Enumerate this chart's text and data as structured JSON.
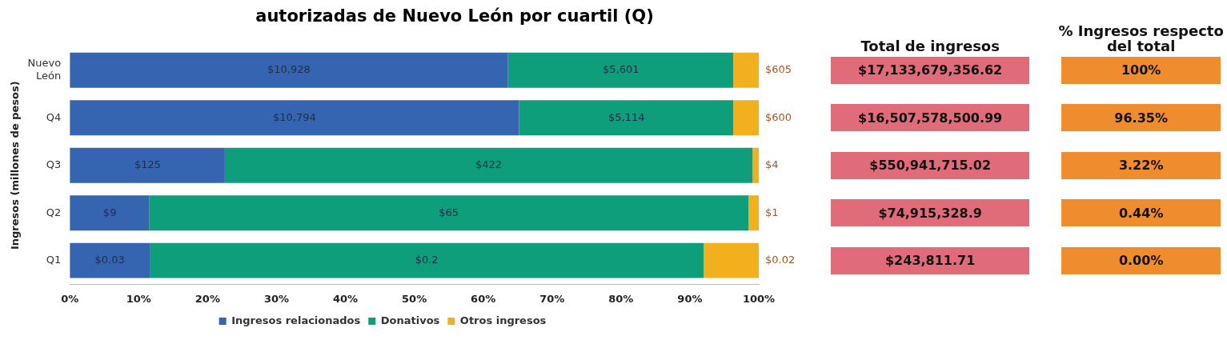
{
  "chart_data": [
    {
      "type": "bar",
      "title": "autorizadas de Nuevo León por cuartil (Q)",
      "orientation": "horizontal",
      "stacked": true,
      "ylabel": "Ingresos (millones de pesos)",
      "categories": [
        "Nuevo León",
        "Q4",
        "Q3",
        "Q2",
        "Q1"
      ],
      "xlim": [
        0,
        100
      ],
      "xticks": [
        {
          "value": 0,
          "label": "0%"
        },
        {
          "value": 10,
          "label": "10%"
        },
        {
          "value": 20,
          "label": "20%"
        },
        {
          "value": 30,
          "label": "30%"
        },
        {
          "value": 40,
          "label": "40%"
        },
        {
          "value": 50,
          "label": "50%"
        },
        {
          "value": 60,
          "label": "60%"
        },
        {
          "value": 70,
          "label": "70%"
        },
        {
          "value": 80,
          "label": "80%"
        },
        {
          "value": 90,
          "label": "90%"
        },
        {
          "value": 100,
          "label": "100%"
        }
      ],
      "legend": "bottom",
      "grid": false,
      "series": [
        {
          "name": "Ingresos relacionados",
          "color": "#3565b0",
          "values": [
            63.6,
            65.2,
            22.5,
            11.5,
            11.6
          ]
        },
        {
          "name": "Donativos",
          "color": "#0f9e7b",
          "values": [
            32.7,
            31.1,
            76.6,
            87.0,
            80.4
          ]
        },
        {
          "name": "Otros ingresos",
          "color": "#f2b11c",
          "values": [
            3.7,
            3.7,
            0.9,
            1.5,
            8.0
          ]
        }
      ],
      "annotations": [
        {
          "text": "$10,928",
          "x": 31.8,
          "y": "Nuevo León"
        },
        {
          "text": "$5,601",
          "x": 80.0,
          "y": "Nuevo León"
        },
        {
          "text": "$605",
          "x": 100,
          "y": "Nuevo León"
        },
        {
          "text": "$10,794",
          "x": 32.6,
          "y": "Q4"
        },
        {
          "text": "$5,114",
          "x": 80.8,
          "y": "Q4"
        },
        {
          "text": "$600",
          "x": 100,
          "y": "Q4"
        },
        {
          "text": "$125",
          "x": 11.3,
          "y": "Q3"
        },
        {
          "text": "$422",
          "x": 60.8,
          "y": "Q3"
        },
        {
          "text": "$4",
          "x": 100,
          "y": "Q3"
        },
        {
          "text": "$9",
          "x": 5.8,
          "y": "Q2"
        },
        {
          "text": "$65",
          "x": 55.0,
          "y": "Q2"
        },
        {
          "text": "$1",
          "x": 100,
          "y": "Q2"
        },
        {
          "text": "$0.03",
          "x": 5.8,
          "y": "Q1"
        },
        {
          "text": "$0.2",
          "x": 51.8,
          "y": "Q1"
        },
        {
          "text": "$0.02",
          "x": 100,
          "y": "Q1"
        }
      ]
    },
    {
      "type": "other",
      "title": "Total de ingresos",
      "color": "#e06c7a",
      "annotations": [
        "$17,133,679,356.62",
        "$16,507,578,500.99",
        "$550,941,715.02",
        "$74,915,328.9",
        "$243,811.71"
      ]
    },
    {
      "type": "other",
      "title": "% Ingresos respecto del total",
      "color": "#ef8c2e",
      "annotations": [
        "100%",
        "96.35%",
        "3.22%",
        "0.44%",
        "0.00%"
      ]
    }
  ]
}
